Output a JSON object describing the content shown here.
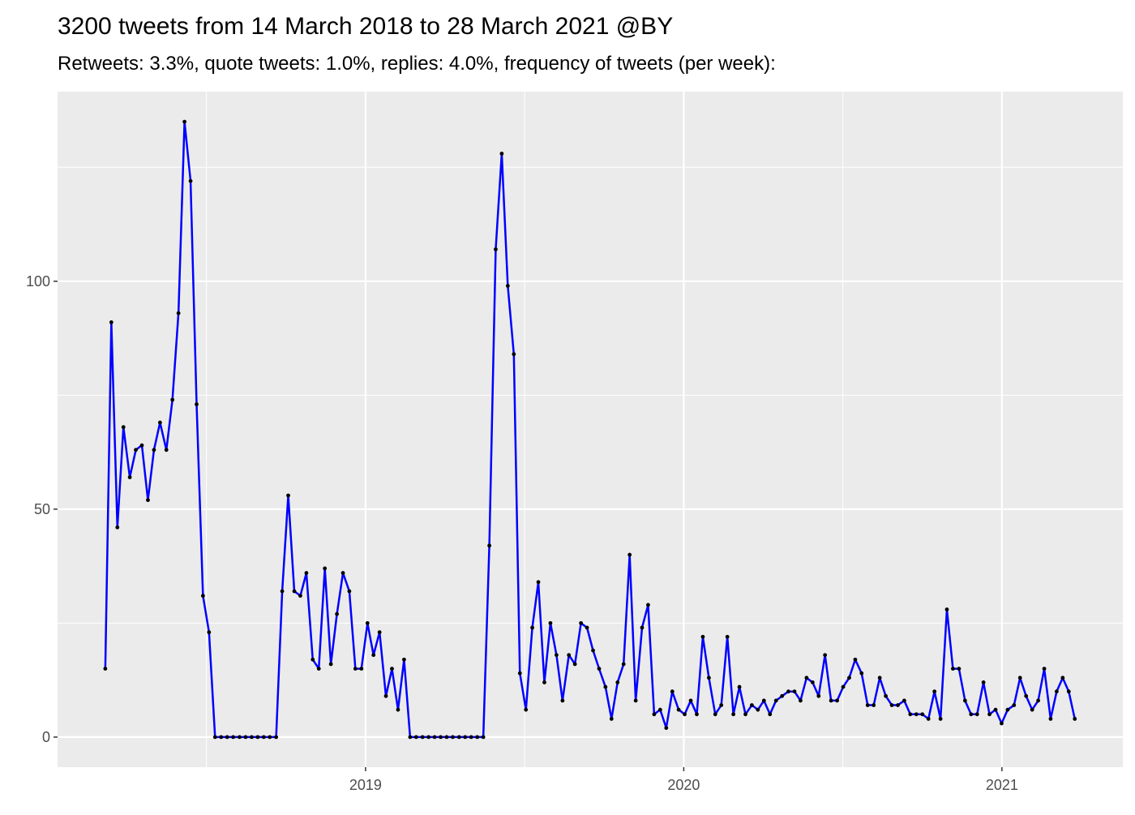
{
  "chart_data": {
    "type": "line",
    "title": "3200 tweets from 14 March 2018 to 28 March 2021 @BY",
    "subtitle": "Retweets: 3.3%, quote tweets: 1.0%, replies: 4.0%, frequency of tweets (per week):",
    "color": "#0000ff",
    "point_color": "#000000",
    "grid": true,
    "xlim": [
      2018.032,
      2021.38
    ],
    "xticks": [
      2019,
      2020,
      2021
    ],
    "ylim": [
      -6.6,
      141.6
    ],
    "yticks": [
      0,
      50,
      100
    ],
    "x": [
      2018.182,
      2018.201,
      2018.22,
      2018.239,
      2018.259,
      2018.278,
      2018.297,
      2018.316,
      2018.335,
      2018.354,
      2018.374,
      2018.393,
      2018.412,
      2018.431,
      2018.45,
      2018.469,
      2018.489,
      2018.508,
      2018.527,
      2018.546,
      2018.565,
      2018.584,
      2018.604,
      2018.623,
      2018.642,
      2018.661,
      2018.68,
      2018.699,
      2018.719,
      2018.738,
      2018.757,
      2018.776,
      2018.795,
      2018.814,
      2018.834,
      2018.853,
      2018.872,
      2018.891,
      2018.91,
      2018.929,
      2018.949,
      2018.968,
      2018.987,
      2019.006,
      2019.025,
      2019.044,
      2019.064,
      2019.083,
      2019.102,
      2019.121,
      2019.14,
      2019.159,
      2019.179,
      2019.198,
      2019.217,
      2019.236,
      2019.255,
      2019.274,
      2019.294,
      2019.313,
      2019.332,
      2019.351,
      2019.37,
      2019.389,
      2019.409,
      2019.428,
      2019.447,
      2019.466,
      2019.485,
      2019.504,
      2019.524,
      2019.543,
      2019.562,
      2019.581,
      2019.6,
      2019.619,
      2019.639,
      2019.658,
      2019.677,
      2019.696,
      2019.715,
      2019.734,
      2019.754,
      2019.773,
      2019.792,
      2019.811,
      2019.83,
      2019.849,
      2019.869,
      2019.888,
      2019.907,
      2019.926,
      2019.945,
      2019.964,
      2019.984,
      2020.003,
      2020.022,
      2020.041,
      2020.06,
      2020.079,
      2020.099,
      2020.118,
      2020.137,
      2020.156,
      2020.175,
      2020.194,
      2020.214,
      2020.233,
      2020.252,
      2020.271,
      2020.29,
      2020.309,
      2020.329,
      2020.348,
      2020.367,
      2020.386,
      2020.405,
      2020.424,
      2020.444,
      2020.463,
      2020.482,
      2020.501,
      2020.52,
      2020.539,
      2020.559,
      2020.578,
      2020.597,
      2020.616,
      2020.635,
      2020.654,
      2020.673,
      2020.693,
      2020.712,
      2020.731,
      2020.75,
      2020.769,
      2020.788,
      2020.807,
      2020.827,
      2020.846,
      2020.865,
      2020.884,
      2020.903,
      2020.922,
      2020.942,
      2020.961,
      2020.98,
      2020.999,
      2021.018,
      2021.038,
      2021.057,
      2021.076,
      2021.095,
      2021.114,
      2021.133,
      2021.153,
      2021.172,
      2021.191,
      2021.21,
      2021.229
    ],
    "values": [
      15,
      91,
      46,
      68,
      57,
      63,
      64,
      52,
      63,
      69,
      63,
      74,
      93,
      135,
      122,
      73,
      31,
      23,
      0,
      0,
      0,
      0,
      0,
      0,
      0,
      0,
      0,
      0,
      0,
      32,
      53,
      32,
      31,
      36,
      17,
      15,
      37,
      16,
      27,
      36,
      32,
      15,
      15,
      25,
      18,
      23,
      9,
      15,
      6,
      17,
      0,
      0,
      0,
      0,
      0,
      0,
      0,
      0,
      0,
      0,
      0,
      0,
      0,
      42,
      107,
      128,
      99,
      84,
      14,
      6,
      24,
      34,
      12,
      25,
      18,
      8,
      18,
      16,
      25,
      24,
      19,
      15,
      11,
      4,
      12,
      16,
      40,
      8,
      24,
      29,
      5,
      6,
      2,
      10,
      6,
      5,
      8,
      5,
      22,
      13,
      5,
      7,
      22,
      5,
      11,
      5,
      7,
      6,
      8,
      5,
      8,
      9,
      10,
      10,
      8,
      13,
      12,
      9,
      18,
      8,
      8,
      11,
      13,
      17,
      14,
      7,
      7,
      13,
      9,
      7,
      7,
      8,
      5,
      5,
      5,
      4,
      10,
      4,
      28,
      15,
      15,
      8,
      5,
      5,
      12,
      5,
      6,
      3,
      6,
      7,
      13,
      9,
      6,
      8,
      15,
      4,
      10,
      13,
      10,
      4
    ]
  }
}
